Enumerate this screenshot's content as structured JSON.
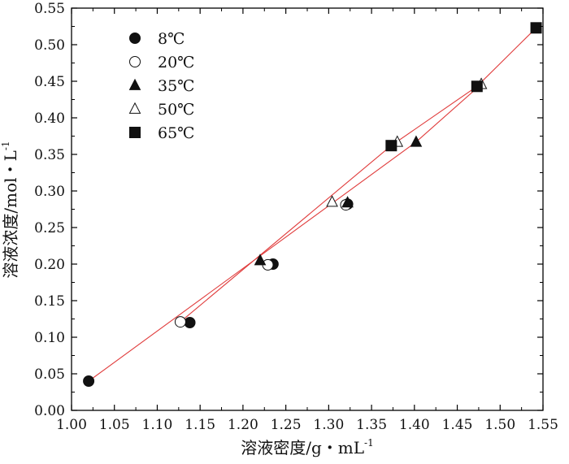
{
  "chart_data": {
    "type": "scatter",
    "xlabel": "溶液密度/g・mL",
    "xlabel_sup": "-1",
    "ylabel": "溶液浓度/mol・L",
    "ylabel_sup": "-1",
    "xlim": [
      1.0,
      1.55
    ],
    "ylim": [
      0.0,
      0.55
    ],
    "xticks": [
      "1.00",
      "1.05",
      "1.10",
      "1.15",
      "1.20",
      "1.25",
      "1.30",
      "1.35",
      "1.40",
      "1.45",
      "1.50",
      "1.55"
    ],
    "yticks": [
      "0.00",
      "0.05",
      "0.10",
      "0.15",
      "0.20",
      "0.25",
      "0.30",
      "0.35",
      "0.40",
      "0.45",
      "0.50",
      "0.55"
    ],
    "grid": false,
    "legend_position": "top-left",
    "fit_color": "#e03c3c",
    "series": [
      {
        "name": "8℃",
        "marker": "filled-circle",
        "points": [
          [
            1.02,
            0.04
          ],
          [
            1.138,
            0.12
          ],
          [
            1.235,
            0.2
          ],
          [
            1.322,
            0.282
          ]
        ]
      },
      {
        "name": "20℃",
        "marker": "open-circle",
        "points": [
          [
            1.127,
            0.121
          ],
          [
            1.229,
            0.199
          ],
          [
            1.32,
            0.281
          ]
        ]
      },
      {
        "name": "35℃",
        "marker": "filled-triangle",
        "points": [
          [
            1.22,
            0.205
          ],
          [
            1.322,
            0.284
          ],
          [
            1.402,
            0.367
          ]
        ]
      },
      {
        "name": "50℃",
        "marker": "open-triangle",
        "points": [
          [
            1.304,
            0.285
          ],
          [
            1.38,
            0.367
          ],
          [
            1.478,
            0.446
          ]
        ]
      },
      {
        "name": "65℃",
        "marker": "filled-square",
        "points": [
          [
            1.373,
            0.362
          ],
          [
            1.473,
            0.443
          ],
          [
            1.542,
            0.523
          ]
        ]
      }
    ],
    "fit_lines": [
      {
        "points": [
          [
            1.02,
            0.04
          ],
          [
            1.402,
            0.367
          ],
          [
            1.478,
            0.446
          ]
        ]
      },
      {
        "points": [
          [
            1.127,
            0.121
          ],
          [
            1.373,
            0.362
          ],
          [
            1.473,
            0.443
          ],
          [
            1.542,
            0.523
          ]
        ]
      }
    ]
  }
}
